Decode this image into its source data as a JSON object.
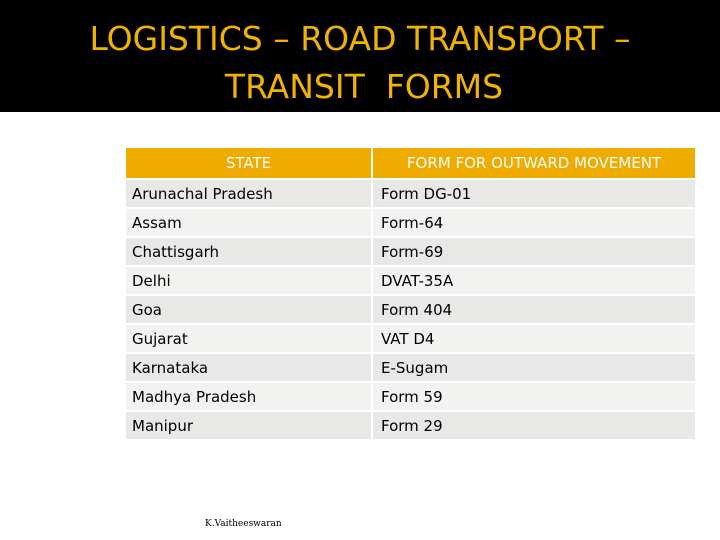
{
  "header": {
    "title": [
      "LOGISTICS – ROAD TRANSPORT –",
      "TRANSIT  FORMS"
    ]
  },
  "table": {
    "columns": [
      "STATE",
      "FORM FOR OUTWARD MOVEMENT"
    ],
    "rows": [
      [
        "Arunachal Pradesh",
        "Form DG-01"
      ],
      [
        "Assam",
        "Form-64"
      ],
      [
        "Chattisgarh",
        "Form-69"
      ],
      [
        "Delhi",
        "DVAT-35A"
      ],
      [
        "Goa",
        "Form 404"
      ],
      [
        "Gujarat",
        "VAT D4"
      ],
      [
        "Karnataka",
        "E-Sugam"
      ],
      [
        "Madhya Pradesh",
        "Form 59"
      ],
      [
        "Manipur",
        "Form 29"
      ]
    ]
  },
  "footer": {
    "author": "K.Vaitheeswaran"
  }
}
